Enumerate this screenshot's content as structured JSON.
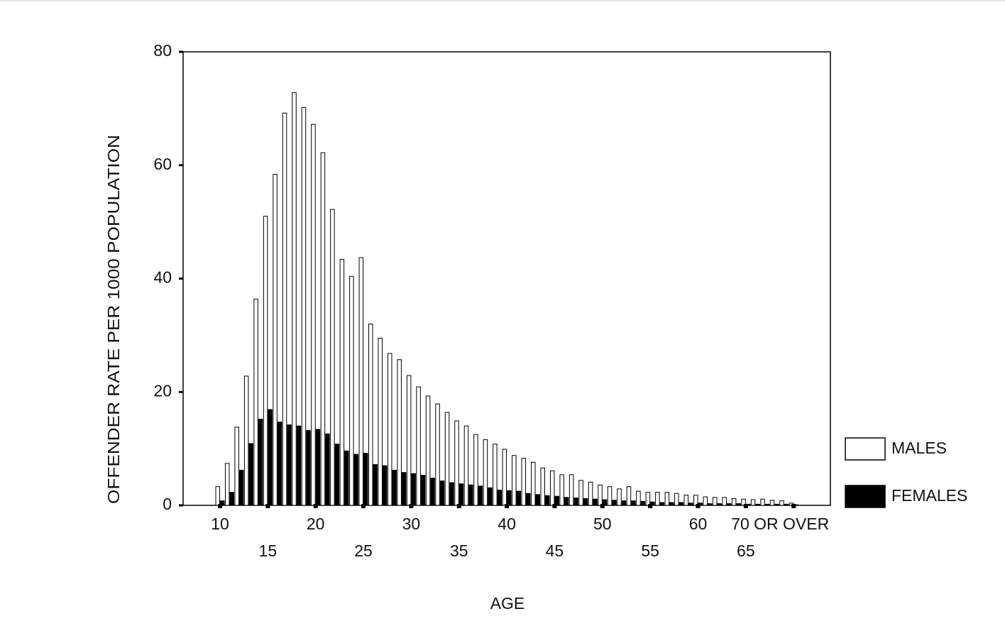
{
  "chart_data": {
    "type": "bar",
    "xlabel": "AGE",
    "ylabel": "OFFENDER RATE PER 1000 POPULATION",
    "categories": [
      "10",
      null,
      null,
      null,
      null,
      "15",
      null,
      null,
      null,
      null,
      "20",
      null,
      null,
      null,
      null,
      "25",
      null,
      null,
      null,
      null,
      "30",
      null,
      null,
      null,
      null,
      "35",
      null,
      null,
      null,
      null,
      "40",
      null,
      null,
      null,
      null,
      "45",
      null,
      null,
      null,
      null,
      "50",
      null,
      null,
      null,
      null,
      "55",
      null,
      null,
      null,
      null,
      "60",
      null,
      null,
      null,
      null,
      "65",
      null,
      null,
      null,
      null,
      "70 OR OVER"
    ],
    "series": [
      {
        "name": "MALES",
        "color": "#ffffff",
        "values": [
          3.3,
          7.4,
          13.8,
          22.8,
          36.4,
          51,
          58.4,
          69.2,
          72.8,
          70.2,
          67.2,
          62.2,
          52.2,
          43.4,
          40.4,
          43.7,
          32,
          29.5,
          26.8,
          25.7,
          22.9,
          20.9,
          19.3,
          17.9,
          16.4,
          14.9,
          14,
          12.5,
          11.6,
          10.8,
          9.9,
          8.8,
          8.3,
          7.6,
          6.6,
          6.1,
          5.4,
          5.4,
          4.4,
          4.1,
          3.6,
          3.3,
          2.9,
          3.3,
          2.5,
          2.3,
          2.3,
          2.3,
          2.1,
          1.8,
          1.8,
          1.5,
          1.4,
          1.4,
          1.2,
          1.1,
          1.0,
          1.1,
          0.9,
          0.8,
          0.4
        ]
      },
      {
        "name": "FEMALES",
        "color": "#000000",
        "values": [
          0.8,
          2.3,
          6.2,
          10.9,
          15.2,
          16.9,
          14.7,
          14.2,
          14,
          13.2,
          13.4,
          12.6,
          10.8,
          9.6,
          9,
          9.2,
          7.2,
          7,
          6.2,
          5.8,
          5.6,
          5.3,
          4.8,
          4.3,
          4,
          3.8,
          3.6,
          3.4,
          3.1,
          2.7,
          2.6,
          2.5,
          2.1,
          1.9,
          1.7,
          1.6,
          1.4,
          1.3,
          1.2,
          1.1,
          1,
          0.9,
          0.8,
          0.8,
          0.7,
          0.6,
          0.5,
          0.5,
          0.5,
          0.4,
          0.4,
          0.3,
          0.3,
          0.3,
          0.3,
          0.2,
          0.2,
          0.2,
          0.2,
          0.2,
          0.1
        ]
      }
    ],
    "ylim": [
      0,
      80
    ],
    "yticks": [
      0,
      20,
      40,
      60,
      80
    ],
    "legend": "right"
  }
}
